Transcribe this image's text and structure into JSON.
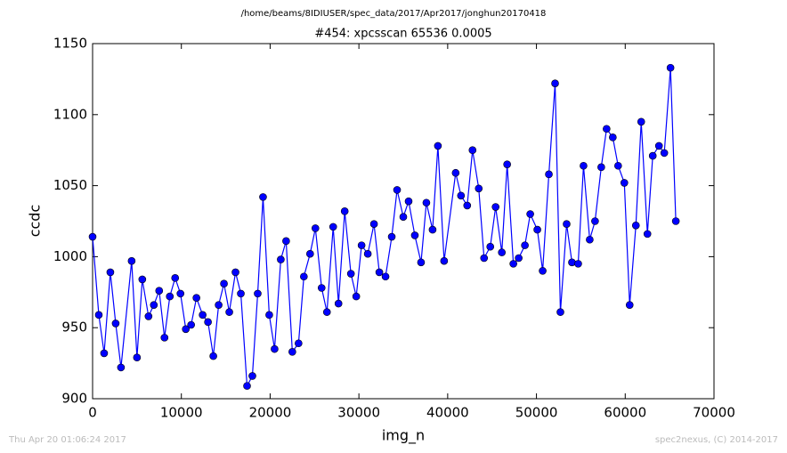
{
  "chart_data": {
    "type": "line",
    "suptitle": "/home/beams/8IDIUSER/spec_data/2017/Apr2017/jonghun20170418",
    "title": "#454: xpcsscan 65536 0.0005",
    "xlabel": "img_n",
    "ylabel": "ccdc",
    "color": "#0000ff",
    "x": [
      0,
      700,
      1300,
      2000,
      2600,
      3200,
      4400,
      5000,
      5600,
      6300,
      6900,
      7500,
      8100,
      8700,
      9300,
      9900,
      10500,
      11100,
      11700,
      12400,
      13000,
      13600,
      14200,
      14800,
      15400,
      16100,
      16700,
      17400,
      18000,
      18600,
      19200,
      19900,
      20500,
      21200,
      21800,
      22500,
      23200,
      23800,
      24500,
      25100,
      25800,
      26400,
      27100,
      27700,
      28400,
      29100,
      29700,
      30300,
      31000,
      31700,
      32300,
      33000,
      33700,
      34300,
      35000,
      35600,
      36300,
      37000,
      37600,
      38300,
      38900,
      39600,
      40900,
      41500,
      42200,
      42800,
      43500,
      44100,
      44800,
      45400,
      46100,
      46700,
      47400,
      48000,
      48700,
      49300,
      50100,
      50700,
      51400,
      52100,
      52700,
      53400,
      54000,
      54700,
      55300,
      56000,
      56600,
      57300,
      57900,
      58600,
      59200,
      59900,
      60500,
      61200,
      61800,
      62500,
      63100,
      63800,
      64400,
      65100,
      65700
    ],
    "values": [
      1014,
      959,
      932,
      989,
      953,
      922,
      997,
      929,
      984,
      958,
      966,
      976,
      943,
      972,
      985,
      974,
      949,
      952,
      971,
      959,
      954,
      930,
      966,
      981,
      961,
      989,
      974,
      909,
      916,
      974,
      1042,
      959,
      935,
      998,
      1011,
      933,
      939,
      986,
      1002,
      1020,
      978,
      961,
      1021,
      967,
      1032,
      988,
      972,
      1008,
      1002,
      1023,
      989,
      986,
      1014,
      1047,
      1028,
      1039,
      1015,
      996,
      1038,
      1019,
      1078,
      997,
      1059,
      1043,
      1036,
      1075,
      1048,
      999,
      1007,
      1035,
      1003,
      1065,
      995,
      999,
      1008,
      1030,
      1019,
      990,
      1058,
      1122,
      961,
      1023,
      996,
      995,
      1064,
      1012,
      1025,
      1063,
      1090,
      1084,
      1064,
      1052,
      966,
      1022,
      1095,
      1016,
      1071,
      1078,
      1073,
      1133,
      1025
    ],
    "xlim": [
      0,
      70000
    ],
    "xticks": [
      0,
      10000,
      20000,
      30000,
      40000,
      50000,
      60000,
      70000
    ],
    "ylim": [
      900,
      1150
    ],
    "yticks": [
      900,
      950,
      1000,
      1050,
      1100,
      1150
    ]
  },
  "footer": {
    "left": "Thu Apr 20 01:06:24 2017",
    "right": "spec2nexus, (C) 2014-2017"
  }
}
